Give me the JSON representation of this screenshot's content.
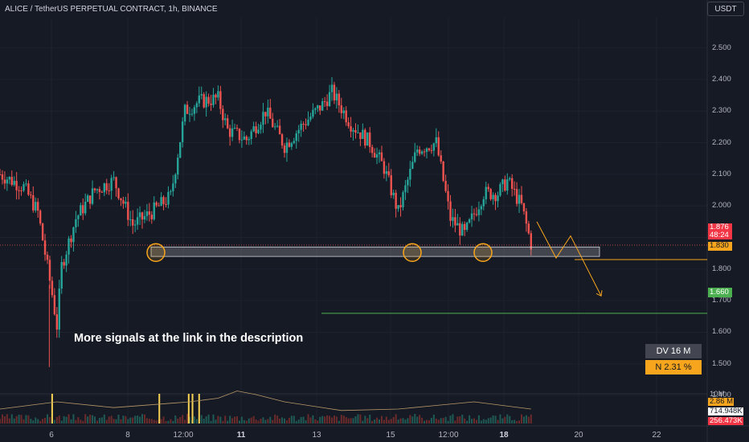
{
  "header": {
    "title": "ALICE / TetherUS PERPETUAL CONTRACT, 1h, BINANCE",
    "currency_button": "USDT"
  },
  "price_scale": {
    "ticks": [
      "2.500",
      "2.400",
      "2.300",
      "2.200",
      "2.100",
      "2.000",
      "1.900",
      "1.800",
      "1.700",
      "1.600",
      "1.500",
      "1.400"
    ]
  },
  "time_scale": {
    "ticks": [
      "6",
      "8",
      "12:00",
      "11",
      "13",
      "15",
      "12:00",
      "18",
      "20",
      "22"
    ]
  },
  "price_tags": {
    "last_price": "1.876",
    "countdown": "48:24",
    "entry_level": "1.830",
    "target_level": "1.660"
  },
  "volume_tags": {
    "v1": "10M",
    "v2": "2.86 M",
    "v3": "714.948K",
    "v4": "256.473K"
  },
  "annotation": "More signals at the link in the description",
  "stats": {
    "dv": "DV 16 M",
    "n": "N 2.31 %"
  },
  "colors": {
    "up": "#26a69a",
    "down": "#ef5350",
    "level": "#f7a51c",
    "target": "#4caf50",
    "background": "#161a25"
  },
  "chart_data": {
    "type": "candlestick",
    "ylim": [
      1.38,
      2.56
    ],
    "support_zone": [
      1.84,
      1.87
    ],
    "levels": {
      "last": 1.876,
      "entry": 1.83,
      "target": 1.66
    },
    "projection": [
      1.95,
      1.835,
      1.905,
      1.715
    ],
    "points": [
      [
        0.0,
        2.1
      ],
      [
        2.5,
        2.06
      ],
      [
        4.0,
        1.98
      ],
      [
        5.5,
        1.72
      ],
      [
        6.0,
        1.62
      ],
      [
        6.5,
        1.81
      ],
      [
        8.0,
        1.96
      ],
      [
        10.0,
        2.05
      ],
      [
        12.0,
        2.08
      ],
      [
        14.0,
        1.94
      ],
      [
        16.0,
        1.98
      ],
      [
        18.0,
        2.03
      ],
      [
        19.5,
        2.3
      ],
      [
        21.0,
        2.33
      ],
      [
        23.0,
        2.34
      ],
      [
        24.0,
        2.24
      ],
      [
        26.0,
        2.21
      ],
      [
        28.0,
        2.3
      ],
      [
        30.0,
        2.19
      ],
      [
        32.0,
        2.26
      ],
      [
        34.0,
        2.32
      ],
      [
        35.0,
        2.36
      ],
      [
        37.0,
        2.26
      ],
      [
        39.0,
        2.2
      ],
      [
        40.5,
        2.12
      ],
      [
        42.0,
        1.98
      ],
      [
        44.0,
        2.18
      ],
      [
        46.0,
        2.2
      ],
      [
        47.5,
        1.96
      ],
      [
        49.0,
        1.91
      ],
      [
        51.0,
        2.04
      ],
      [
        52.5,
        2.04
      ],
      [
        53.5,
        2.08
      ],
      [
        55.0,
        2.0
      ],
      [
        56.0,
        1.88
      ]
    ],
    "volume_profile": [
      [
        0,
        0.2
      ],
      [
        6,
        0.3
      ],
      [
        12,
        0.22
      ],
      [
        18,
        0.28
      ],
      [
        20,
        0.3
      ],
      [
        23,
        0.35
      ],
      [
        25,
        0.45
      ],
      [
        27,
        0.4
      ],
      [
        30,
        0.3
      ],
      [
        36,
        0.18
      ],
      [
        42,
        0.2
      ],
      [
        46,
        0.25
      ],
      [
        50,
        0.3
      ],
      [
        56,
        0.2
      ]
    ],
    "volume_spikes": [
      5.5,
      16.8,
      19.9,
      20.3,
      21.0
    ]
  }
}
